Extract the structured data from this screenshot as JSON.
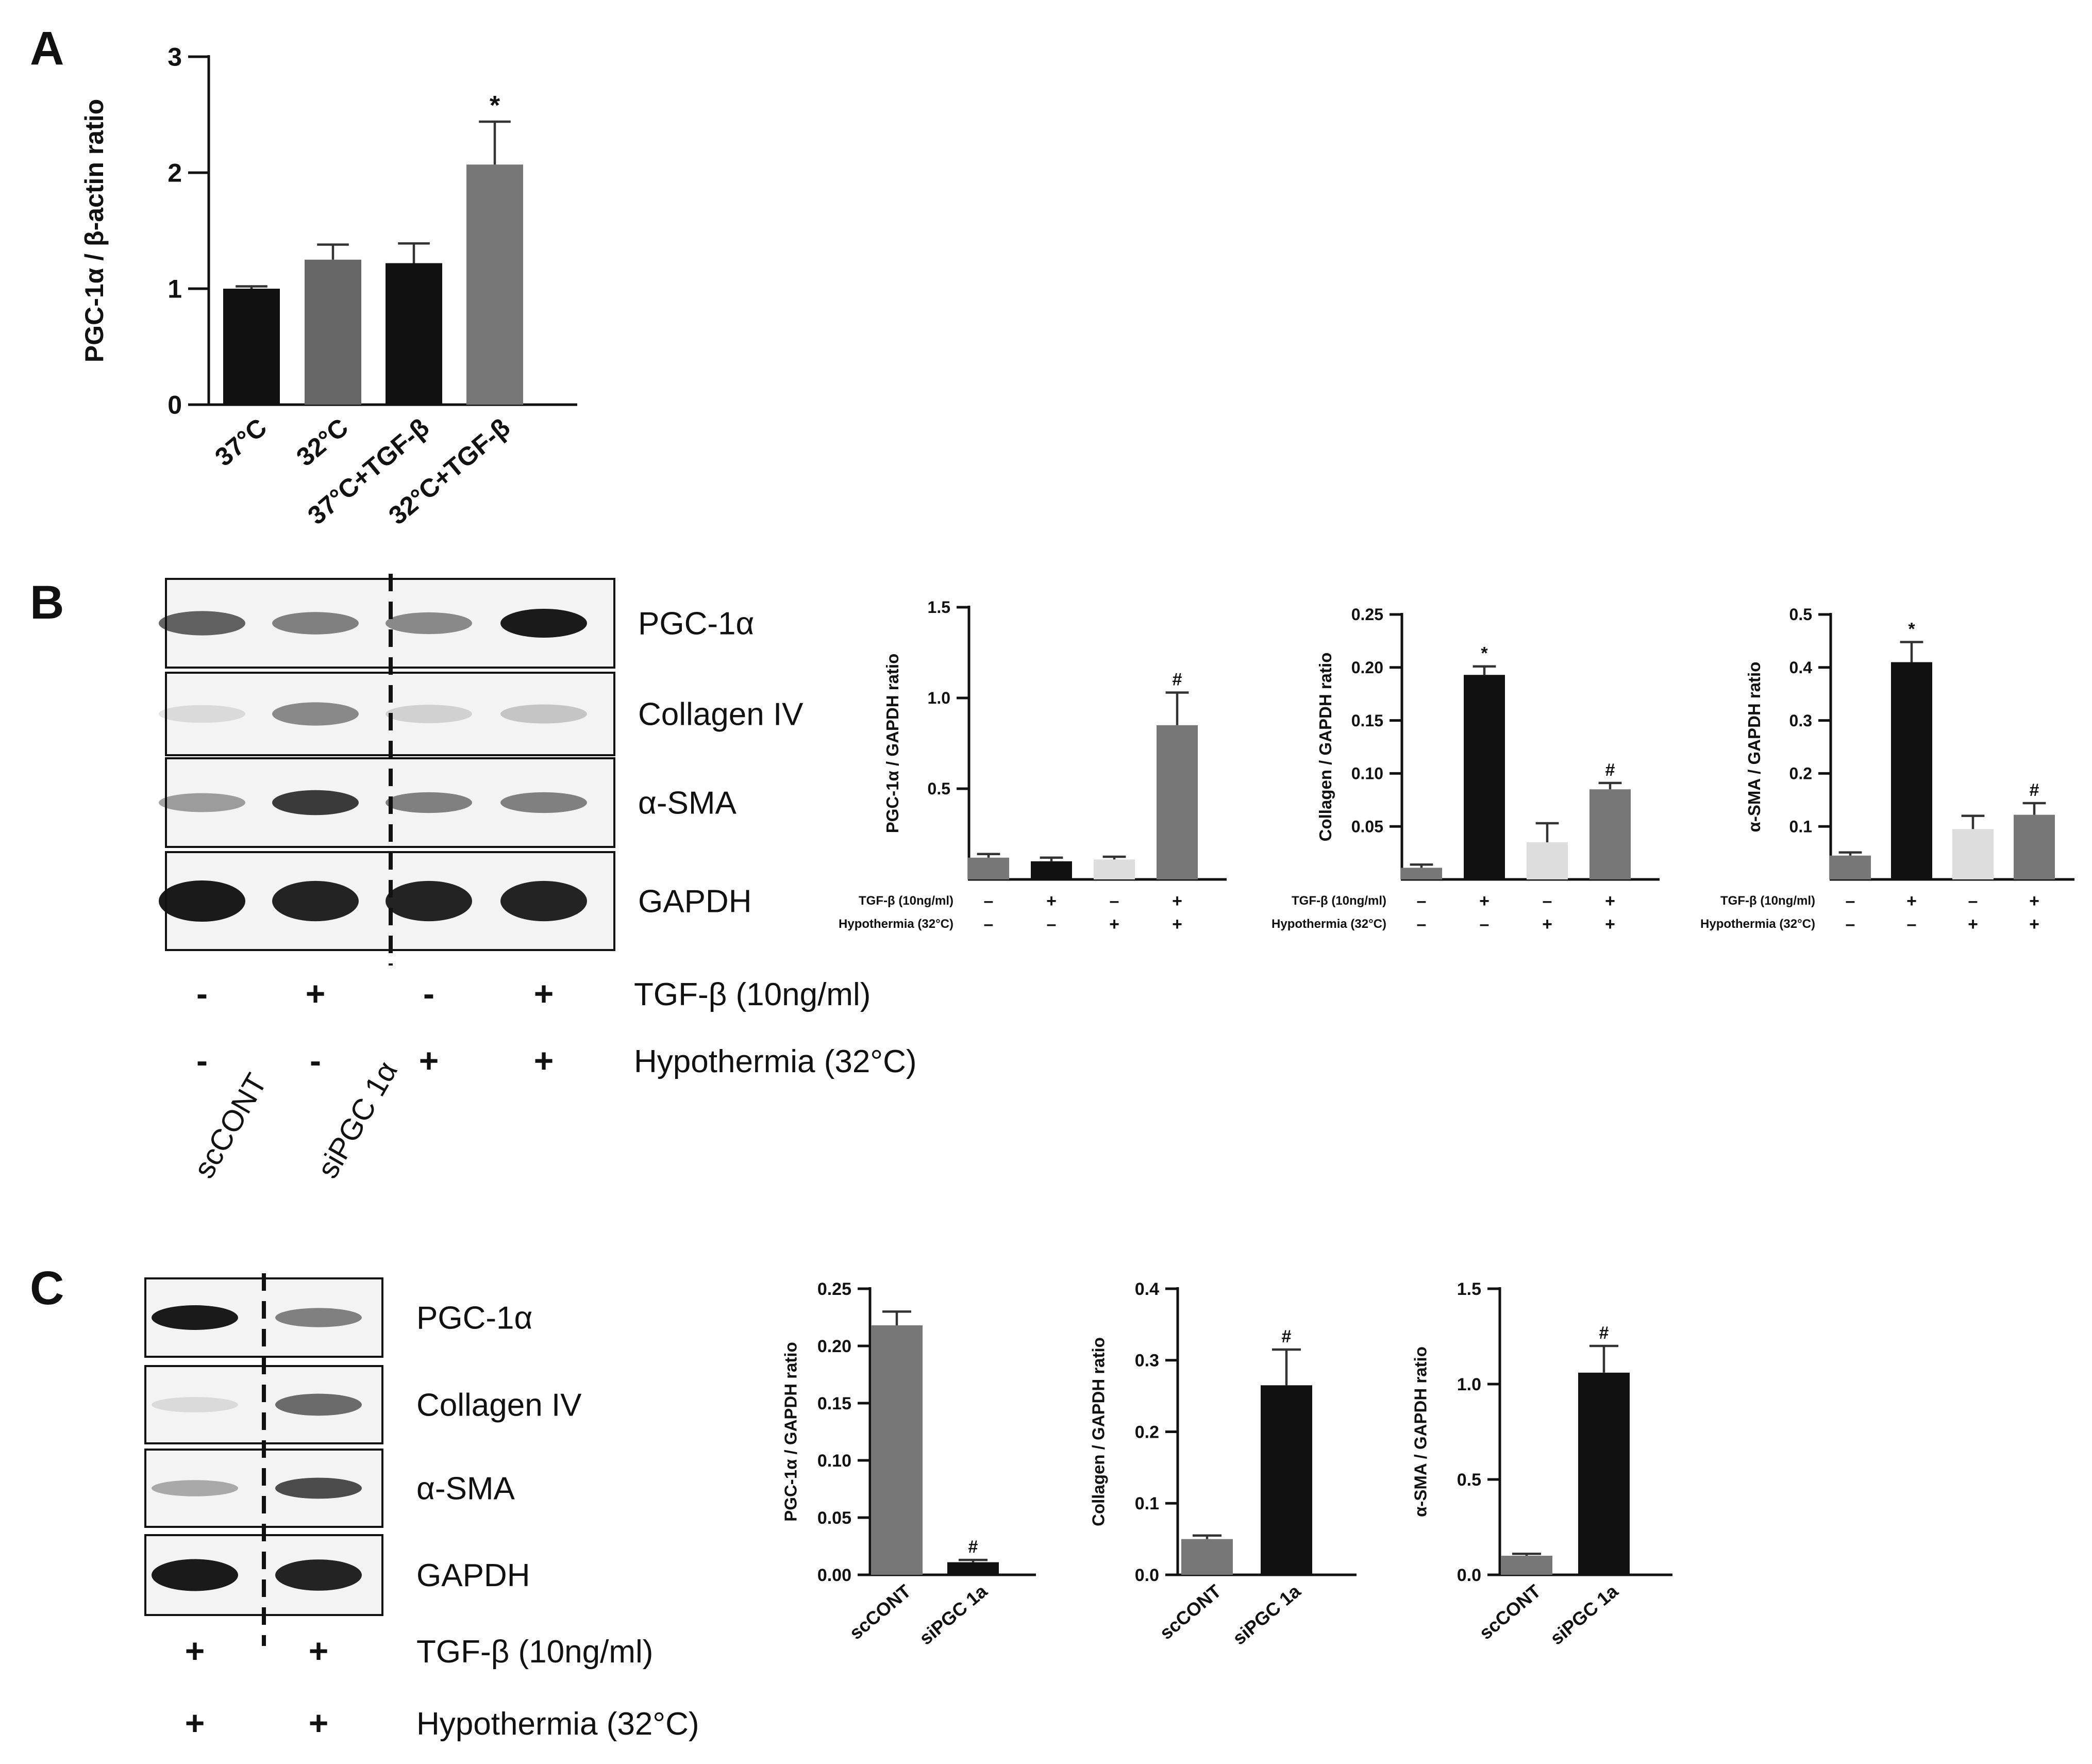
{
  "panels": [
    {
      "id": "A",
      "label": "A"
    },
    {
      "id": "B",
      "label": "B"
    },
    {
      "id": "C",
      "label": "C"
    }
  ],
  "blots": [
    {
      "id": "B",
      "bands": [
        "PGC-1α",
        "Collagen IV",
        "α-SMA",
        "GAPDH"
      ],
      "band_intensity": [
        [
          0.65,
          0.5,
          0.45,
          1.0
        ],
        [
          0.05,
          0.45,
          0.1,
          0.15
        ],
        [
          0.35,
          0.85,
          0.5,
          0.5
        ],
        [
          1.0,
          0.95,
          0.95,
          0.95
        ]
      ],
      "conditions": [
        {
          "label": "TGF-β (10ng/ml)",
          "signs": [
            "-",
            "+",
            "-",
            "+"
          ]
        },
        {
          "label": "Hypothermia (32°C)",
          "signs": [
            "-",
            "-",
            "+",
            "+"
          ]
        }
      ]
    },
    {
      "id": "C",
      "bands": [
        "PGC-1α",
        "Collagen IV",
        "α-SMA",
        "GAPDH"
      ],
      "band_intensity": [
        [
          1.0,
          0.5
        ],
        [
          0.05,
          0.6
        ],
        [
          0.3,
          0.75
        ],
        [
          1.0,
          0.95
        ]
      ],
      "lane_labels": [
        "scCONT",
        "siPGC 1α"
      ],
      "conditions": [
        {
          "label": "TGF-β (10ng/ml)",
          "signs": [
            "+",
            "+"
          ]
        },
        {
          "label": "Hypothermia (32°C)",
          "signs": [
            "+",
            "+"
          ]
        }
      ]
    }
  ],
  "chart_data": [
    {
      "id": "A",
      "type": "bar",
      "categories": [
        "37°C",
        "32°C",
        "37°C+TGF-β",
        "32°C+TGF-β"
      ],
      "values": [
        1.0,
        1.25,
        1.22,
        2.07
      ],
      "errors": [
        0.02,
        0.13,
        0.17,
        0.37
      ],
      "annotations": [
        "",
        "",
        "",
        "*"
      ],
      "colors": [
        "#111111",
        "#666666",
        "#111111",
        "#777777"
      ],
      "ylabel": "PGC-1α / β-actin ratio",
      "ylim": [
        0,
        3
      ],
      "yticks": [
        "0",
        "1",
        "2",
        "3"
      ]
    },
    {
      "id": "B1",
      "type": "bar",
      "values": [
        0.12,
        0.1,
        0.11,
        0.85
      ],
      "errors": [
        0.02,
        0.02,
        0.015,
        0.18
      ],
      "annotations": [
        "",
        "",
        "",
        "#"
      ],
      "colors": [
        "#777777",
        "#111111",
        "#dddddd",
        "#777777"
      ],
      "ylabel": "PGC-1α / GAPDH ratio",
      "ylim": [
        0,
        1.5
      ],
      "yticks": [
        "0.5",
        "1.0",
        "1.5"
      ],
      "conditions": [
        {
          "label": "TGF-β (10ng/ml)",
          "signs": [
            "–",
            "+",
            "–",
            "+"
          ]
        },
        {
          "label": "Hypothermia (32°C)",
          "signs": [
            "–",
            "–",
            "+",
            "+"
          ]
        }
      ]
    },
    {
      "id": "B2",
      "type": "bar",
      "values": [
        0.011,
        0.193,
        0.035,
        0.085
      ],
      "errors": [
        0.003,
        0.008,
        0.018,
        0.006
      ],
      "annotations": [
        "",
        "*",
        "",
        "#"
      ],
      "colors": [
        "#777777",
        "#111111",
        "#dddddd",
        "#777777"
      ],
      "ylabel": "Collagen / GAPDH ratio",
      "ylim": [
        0,
        0.25
      ],
      "yticks": [
        "0.05",
        "0.10",
        "0.15",
        "0.20",
        "0.25"
      ],
      "conditions": [
        {
          "label": "TGF-β (10ng/ml)",
          "signs": [
            "–",
            "+",
            "–",
            "+"
          ]
        },
        {
          "label": "Hypothermia (32°C)",
          "signs": [
            "–",
            "–",
            "+",
            "+"
          ]
        }
      ]
    },
    {
      "id": "B3",
      "type": "bar",
      "values": [
        0.045,
        0.41,
        0.095,
        0.122
      ],
      "errors": [
        0.006,
        0.038,
        0.025,
        0.022
      ],
      "annotations": [
        "",
        "*",
        "",
        "#"
      ],
      "colors": [
        "#777777",
        "#111111",
        "#dddddd",
        "#777777"
      ],
      "ylabel": "α-SMA / GAPDH ratio",
      "ylim": [
        0,
        0.5
      ],
      "yticks": [
        "0.1",
        "0.2",
        "0.3",
        "0.4",
        "0.5"
      ],
      "conditions": [
        {
          "label": "TGF-β (10ng/ml)",
          "signs": [
            "–",
            "+",
            "–",
            "+"
          ]
        },
        {
          "label": "Hypothermia (32°C)",
          "signs": [
            "–",
            "–",
            "+",
            "+"
          ]
        }
      ]
    },
    {
      "id": "C1",
      "type": "bar",
      "categories": [
        "scCONT",
        "siPGC 1a"
      ],
      "values": [
        0.218,
        0.011
      ],
      "errors": [
        0.012,
        0.002
      ],
      "annotations": [
        "",
        "#"
      ],
      "colors": [
        "#777777",
        "#111111"
      ],
      "ylabel": "PGC-1α / GAPDH ratio",
      "ylim": [
        0,
        0.25
      ],
      "yticks": [
        "0.00",
        "0.05",
        "0.10",
        "0.15",
        "0.20",
        "0.25"
      ]
    },
    {
      "id": "C2",
      "type": "bar",
      "categories": [
        "scCONT",
        "siPGC 1a"
      ],
      "values": [
        0.05,
        0.265
      ],
      "errors": [
        0.005,
        0.05
      ],
      "annotations": [
        "",
        "#"
      ],
      "colors": [
        "#777777",
        "#111111"
      ],
      "ylabel": "Collagen / GAPDH ratio",
      "ylim": [
        0,
        0.4
      ],
      "yticks": [
        "0.0",
        "0.1",
        "0.2",
        "0.3",
        "0.4"
      ]
    },
    {
      "id": "C3",
      "type": "bar",
      "categories": [
        "scCONT",
        "siPGC 1a"
      ],
      "values": [
        0.1,
        1.06
      ],
      "errors": [
        0.01,
        0.14
      ],
      "annotations": [
        "",
        "#"
      ],
      "colors": [
        "#777777",
        "#111111"
      ],
      "ylabel": "α-SMA / GAPDH ratio",
      "ylim": [
        0,
        1.5
      ],
      "yticks": [
        "0.0",
        "0.5",
        "1.0",
        "1.5"
      ]
    }
  ]
}
